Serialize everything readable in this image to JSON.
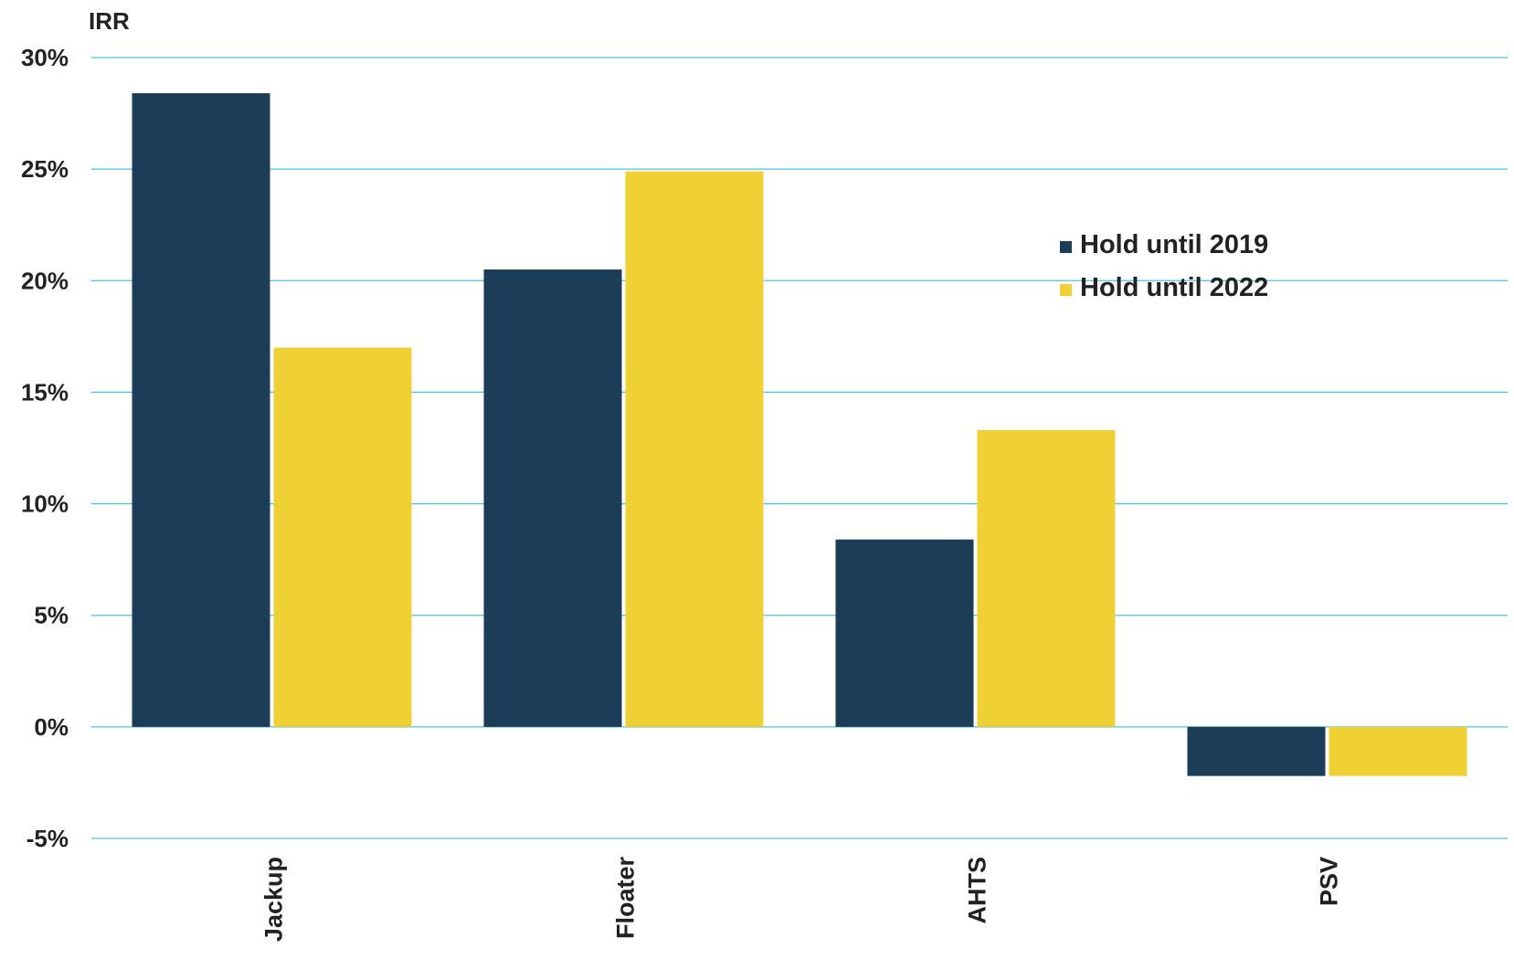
{
  "chart_data": {
    "type": "bar",
    "title": "",
    "xlabel": "",
    "ylabel": "IRR",
    "categories": [
      "Jackup",
      "Floater",
      "AHTS",
      "PSV"
    ],
    "series": [
      {
        "name": "Hold until 2019",
        "color": "#1b3d57",
        "values": [
          28.4,
          20.5,
          8.4,
          -2.2
        ]
      },
      {
        "name": "Hold until 2022",
        "color": "#efd035",
        "values": [
          17.0,
          24.9,
          13.3,
          -2.2
        ]
      }
    ],
    "ylim": [
      -5,
      30
    ],
    "yticks": [
      30,
      25,
      20,
      15,
      10,
      5,
      0,
      -5
    ],
    "ytick_labels": [
      "30%",
      "25%",
      "20%",
      "15%",
      "10%",
      "5%",
      "0%",
      "-5%"
    ],
    "grid": true,
    "grid_color": "#4fc3e0",
    "legend_position": "right"
  }
}
